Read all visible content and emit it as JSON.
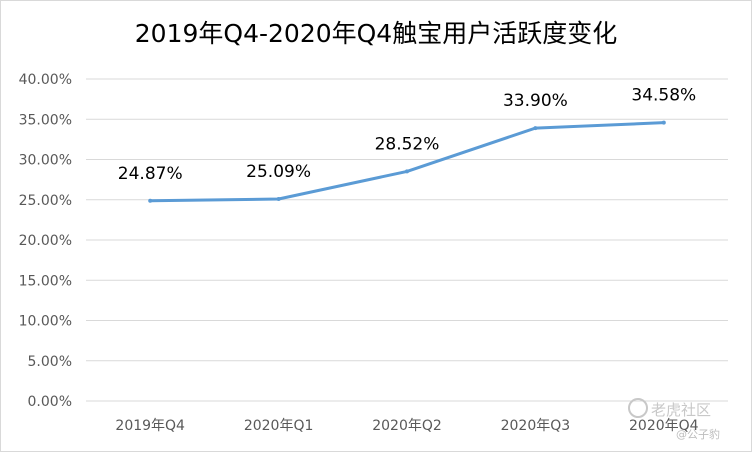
{
  "chart_data": {
    "type": "line",
    "title": "2019年Q4-2020年Q4触宝用户活跃度变化",
    "categories": [
      "2019年Q4",
      "2020年Q1",
      "2020年Q2",
      "2020年Q3",
      "2020年Q4"
    ],
    "series": [
      {
        "values": [
          24.87,
          25.09,
          28.52,
          33.9,
          34.58
        ],
        "data_labels": [
          "24.87%",
          "25.09%",
          "28.52%",
          "33.90%",
          "34.58%"
        ],
        "color": "#5b9bd5"
      }
    ],
    "y_ticks": [
      "0.00%",
      "5.00%",
      "10.00%",
      "15.00%",
      "20.00%",
      "25.00%",
      "30.00%",
      "35.00%",
      "40.00%"
    ],
    "ylim": [
      0,
      40
    ],
    "grid": true,
    "legend": "none"
  },
  "watermark": {
    "brand": "老虎社区",
    "author": "@公子豹"
  },
  "colors": {
    "line": "#5b9bd5",
    "grid": "#d9d9d9",
    "axis_text": "#595959"
  }
}
